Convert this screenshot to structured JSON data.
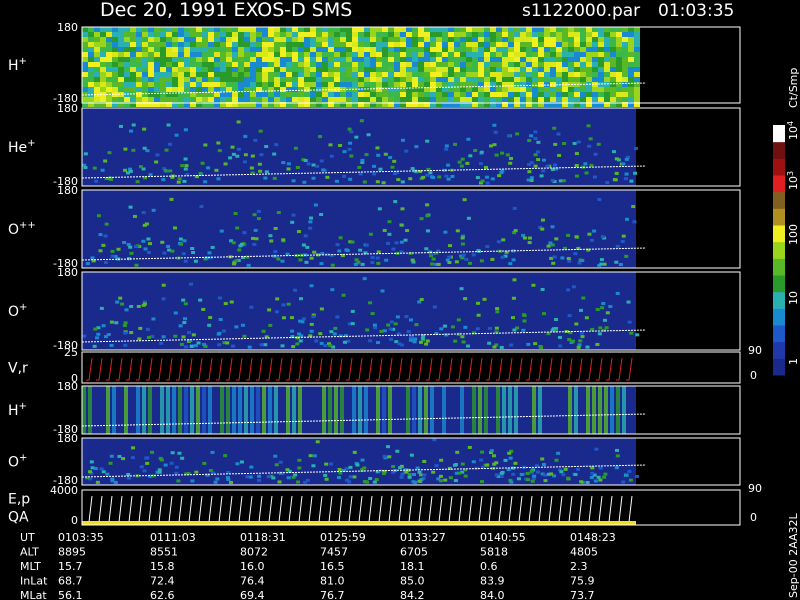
{
  "header": {
    "title": "Dec 20, 1991   EXOS-D SMS",
    "file": "s1122000.par",
    "time": "01:03:35"
  },
  "panels": [
    {
      "name": "H",
      "sup": "+",
      "top": "180",
      "bottom": "-180"
    },
    {
      "name": "He",
      "sup": "+",
      "top": "180",
      "bottom": "-180"
    },
    {
      "name": "O",
      "sup": "++",
      "top": "180",
      "bottom": "-180"
    },
    {
      "name": "O",
      "sup": "+",
      "top": "180",
      "bottom": "-180"
    },
    {
      "name": "V,r",
      "sup": "",
      "top": "25",
      "bottom": "0",
      "right_top": "90",
      "right_bottom": "0"
    },
    {
      "name": "H",
      "sup": "+",
      "top": "180",
      "bottom": "-180"
    },
    {
      "name": "O",
      "sup": "+",
      "top": "180",
      "bottom": "-180"
    },
    {
      "name": "E,p",
      "name2": "QA",
      "sup": "",
      "top": "4000",
      "bottom": "0",
      "right_top": "90",
      "right_bottom": "0"
    }
  ],
  "colorbar": {
    "unit": "Ct/Smp",
    "labels": [
      {
        "base": "10",
        "exp": "4"
      },
      {
        "base": "10",
        "exp": "3"
      },
      {
        "base": "100",
        "exp": ""
      },
      {
        "base": "10",
        "exp": ""
      },
      {
        "base": "1",
        "exp": ""
      }
    ]
  },
  "table": {
    "rows": [
      {
        "label": "UT",
        "cells": [
          "0103:35",
          "0111:03",
          "0118:31",
          "0125:59",
          "0133:27",
          "0140:55",
          "0148:23"
        ]
      },
      {
        "label": "ALT",
        "cells": [
          "8895",
          "8551",
          "8072",
          "7457",
          "6705",
          "5818",
          "4805"
        ]
      },
      {
        "label": "MLT",
        "cells": [
          "15.7",
          "15.8",
          "16.0",
          "16.5",
          "18.1",
          "0.6",
          "2.3"
        ]
      },
      {
        "label": "InLat",
        "cells": [
          "68.7",
          "72.4",
          "76.4",
          "81.0",
          "85.0",
          "83.9",
          "75.9"
        ]
      },
      {
        "label": "MLat",
        "cells": [
          "56.1",
          "62.6",
          "69.4",
          "76.7",
          "84.2",
          "84.0",
          "73.7"
        ]
      }
    ]
  },
  "footer": "Sep-00 2AA32L"
}
